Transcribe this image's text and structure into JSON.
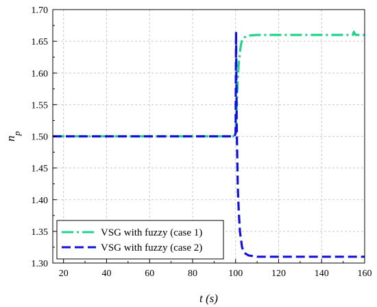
{
  "chart_data": {
    "type": "line",
    "xlabel": "t (s)",
    "ylabel_main": "n",
    "ylabel_sub": "p",
    "xlim": [
      15,
      160
    ],
    "ylim": [
      1.3,
      1.7
    ],
    "x_ticks": [
      "20",
      "40",
      "60",
      "80",
      "100",
      "120",
      "140",
      "160"
    ],
    "y_ticks": [
      "1.30",
      "1.35",
      "1.40",
      "1.45",
      "1.50",
      "1.55",
      "1.60",
      "1.65",
      "1.70"
    ],
    "grid": true,
    "legend_position": "bottom-left",
    "series": [
      {
        "name": "VSG with fuzzy (case 1)",
        "color": "#1fd38a",
        "dash": "dash-dot",
        "x": [
          15,
          100,
          100.5,
          101,
          101.5,
          102,
          102.5,
          103,
          104,
          106,
          110,
          120,
          130,
          140,
          150,
          154.5,
          155,
          155.5,
          156,
          158,
          160
        ],
        "y": [
          1.5,
          1.5,
          1.545,
          1.59,
          1.615,
          1.633,
          1.645,
          1.652,
          1.656,
          1.659,
          1.66,
          1.66,
          1.66,
          1.66,
          1.66,
          1.66,
          1.665,
          1.661,
          1.66,
          1.66,
          1.66
        ]
      },
      {
        "name": "VSG with fuzzy (case 2)",
        "color": "#1010d8",
        "dash": "dashed",
        "x": [
          15,
          99.5,
          100,
          100.2,
          100.5,
          101,
          101.5,
          102,
          103,
          104,
          106,
          110,
          120,
          140,
          160
        ],
        "y": [
          1.5,
          1.5,
          1.505,
          1.665,
          1.52,
          1.42,
          1.38,
          1.35,
          1.325,
          1.316,
          1.312,
          1.31,
          1.31,
          1.31,
          1.31
        ]
      }
    ]
  }
}
